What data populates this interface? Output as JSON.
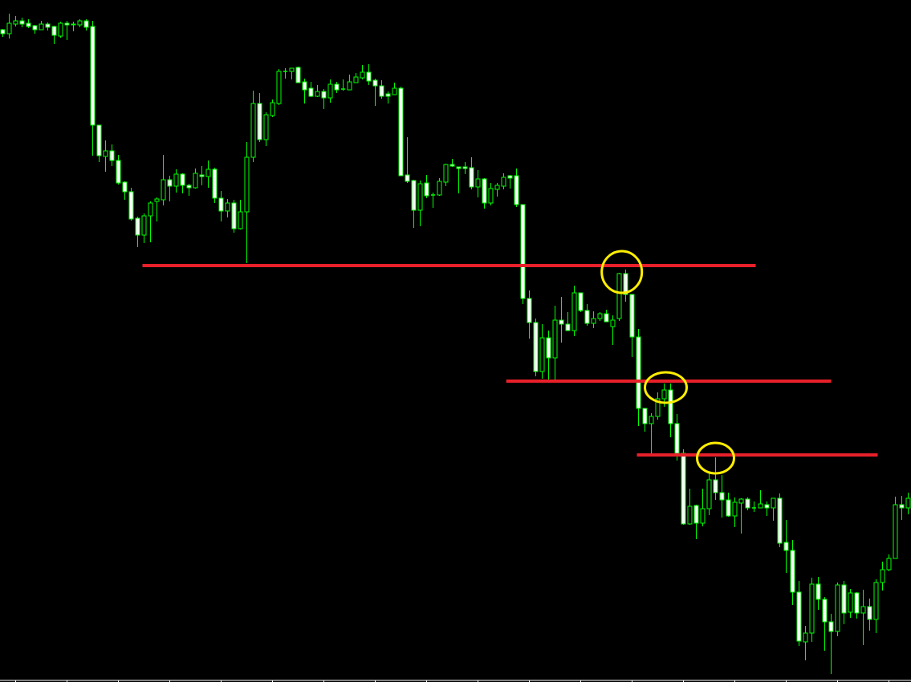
{
  "chart_data": {
    "type": "candlestick",
    "title": "",
    "xlabel": "",
    "ylabel": "",
    "ylim": [
      0,
      850
    ],
    "grid": false,
    "legend": "none",
    "colors": {
      "background": "#000000",
      "wick_and_outline": "#00ff00",
      "bearish_body": "#ffffff",
      "bullish_body": "#000000",
      "level_line": "#e8202a",
      "highlight_circle": "#ffee00",
      "axis": "#ffffff"
    },
    "candles_ohlc": [
      [
        813,
        814,
        804,
        808
      ],
      [
        808,
        833,
        802,
        821
      ],
      [
        820,
        830,
        817,
        824
      ],
      [
        824,
        828,
        816,
        820
      ],
      [
        821,
        826,
        815,
        817
      ],
      [
        818,
        819,
        808,
        813
      ],
      [
        813,
        824,
        813,
        820
      ],
      [
        820,
        822,
        812,
        816
      ],
      [
        817,
        818,
        795,
        806
      ],
      [
        805,
        823,
        803,
        821
      ],
      [
        821,
        824,
        800,
        819
      ],
      [
        819,
        823,
        811,
        820
      ],
      [
        819,
        826,
        816,
        824
      ],
      [
        824,
        826,
        812,
        816
      ],
      [
        817,
        824,
        656,
        694
      ],
      [
        694,
        694,
        648,
        656
      ],
      [
        655,
        675,
        636,
        662
      ],
      [
        662,
        670,
        643,
        650
      ],
      [
        650,
        657,
        620,
        622
      ],
      [
        623,
        624,
        601,
        611
      ],
      [
        611,
        616,
        575,
        577
      ],
      [
        578,
        580,
        542,
        557
      ],
      [
        557,
        584,
        547,
        581
      ],
      [
        581,
        599,
        548,
        597
      ],
      [
        599,
        604,
        574,
        602
      ],
      [
        601,
        657,
        594,
        626
      ],
      [
        626,
        631,
        599,
        618
      ],
      [
        618,
        639,
        610,
        633
      ],
      [
        633,
        634,
        609,
        619
      ],
      [
        619,
        621,
        606,
        616
      ],
      [
        616,
        640,
        615,
        634
      ],
      [
        632,
        643,
        619,
        630
      ],
      [
        630,
        650,
        616,
        639
      ],
      [
        639,
        641,
        597,
        603
      ],
      [
        603,
        612,
        574,
        587
      ],
      [
        587,
        602,
        579,
        597
      ],
      [
        597,
        601,
        560,
        565
      ],
      [
        565,
        601,
        564,
        586
      ],
      [
        586,
        673,
        522,
        654
      ],
      [
        654,
        737,
        648,
        721
      ],
      [
        721,
        734,
        673,
        676
      ],
      [
        676,
        710,
        668,
        707
      ],
      [
        706,
        726,
        704,
        722
      ],
      [
        721,
        764,
        719,
        761
      ],
      [
        761,
        765,
        752,
        761
      ],
      [
        761,
        765,
        751,
        765
      ],
      [
        766,
        767,
        747,
        747
      ],
      [
        748,
        752,
        721,
        738
      ],
      [
        740,
        748,
        729,
        730
      ],
      [
        730,
        744,
        729,
        736
      ],
      [
        736,
        739,
        714,
        728
      ],
      [
        728,
        751,
        722,
        745
      ],
      [
        745,
        748,
        734,
        738
      ],
      [
        739,
        751,
        737,
        739
      ],
      [
        738,
        757,
        738,
        748
      ],
      [
        747,
        759,
        747,
        754
      ],
      [
        753,
        769,
        751,
        760
      ],
      [
        760,
        770,
        744,
        749
      ],
      [
        750,
        752,
        718,
        743
      ],
      [
        743,
        750,
        727,
        730
      ],
      [
        733,
        736,
        721,
        730
      ],
      [
        732,
        747,
        732,
        740
      ],
      [
        740,
        742,
        631,
        631
      ],
      [
        632,
        679,
        622,
        624
      ],
      [
        625,
        626,
        566,
        588
      ],
      [
        588,
        625,
        568,
        621
      ],
      [
        622,
        632,
        603,
        606
      ],
      [
        607,
        610,
        591,
        607
      ],
      [
        607,
        628,
        606,
        624
      ],
      [
        623,
        646,
        618,
        645
      ],
      [
        645,
        652,
        642,
        643
      ],
      [
        642,
        642,
        609,
        640
      ],
      [
        642,
        648,
        633,
        640
      ],
      [
        641,
        654,
        614,
        617
      ],
      [
        617,
        638,
        604,
        627
      ],
      [
        627,
        628,
        590,
        597
      ],
      [
        597,
        622,
        594,
        615
      ],
      [
        614,
        622,
        605,
        619
      ],
      [
        618,
        634,
        614,
        629
      ],
      [
        631,
        632,
        615,
        628
      ],
      [
        631,
        640,
        592,
        595
      ],
      [
        595,
        595,
        471,
        478
      ],
      [
        478,
        488,
        428,
        448
      ],
      [
        448,
        453,
        381,
        387
      ],
      [
        387,
        446,
        378,
        429
      ],
      [
        429,
        438,
        377,
        404
      ],
      [
        404,
        469,
        377,
        451
      ],
      [
        451,
        480,
        423,
        446
      ],
      [
        446,
        461,
        438,
        438
      ],
      [
        438,
        494,
        431,
        485
      ],
      [
        485,
        485,
        461,
        463
      ],
      [
        463,
        471,
        444,
        447
      ],
      [
        447,
        462,
        441,
        453
      ],
      [
        453,
        461,
        450,
        459
      ],
      [
        459,
        464,
        449,
        449
      ],
      [
        443,
        457,
        420,
        451
      ],
      [
        453,
        510,
        450,
        509
      ],
      [
        509,
        514,
        474,
        483
      ],
      [
        483,
        483,
        405,
        430
      ],
      [
        430,
        440,
        319,
        341
      ],
      [
        341,
        341,
        312,
        322
      ],
      [
        322,
        335,
        285,
        331
      ],
      [
        331,
        361,
        327,
        353
      ],
      [
        353,
        372,
        343,
        364
      ],
      [
        364,
        372,
        305,
        322
      ],
      [
        322,
        334,
        276,
        285
      ],
      [
        285,
        290,
        196,
        197
      ],
      [
        197,
        241,
        196,
        219
      ],
      [
        220,
        221,
        178,
        198
      ],
      [
        198,
        241,
        194,
        216
      ],
      [
        216,
        260,
        208,
        252
      ],
      [
        252,
        280,
        227,
        236
      ],
      [
        236,
        258,
        205,
        227
      ],
      [
        227,
        236,
        206,
        207
      ],
      [
        207,
        230,
        193,
        224
      ],
      [
        223,
        229,
        185,
        228
      ],
      [
        228,
        230,
        214,
        217
      ],
      [
        217,
        225,
        212,
        217
      ],
      [
        217,
        239,
        217,
        222
      ],
      [
        221,
        225,
        207,
        217
      ],
      [
        217,
        229,
        201,
        229
      ],
      [
        229,
        235,
        168,
        173
      ],
      [
        174,
        202,
        136,
        164
      ],
      [
        164,
        177,
        96,
        112
      ],
      [
        112,
        126,
        45,
        51
      ],
      [
        50,
        70,
        27,
        61
      ],
      [
        61,
        130,
        50,
        122
      ],
      [
        122,
        131,
        90,
        103
      ],
      [
        103,
        106,
        39,
        75
      ],
      [
        75,
        85,
        10,
        63
      ],
      [
        63,
        124,
        57,
        121
      ],
      [
        121,
        126,
        72,
        86
      ],
      [
        87,
        116,
        80,
        111
      ],
      [
        111,
        112,
        79,
        86
      ],
      [
        86,
        115,
        46,
        94
      ],
      [
        94,
        104,
        64,
        78
      ],
      [
        78,
        128,
        61,
        124
      ],
      [
        124,
        150,
        114,
        140
      ],
      [
        140,
        159,
        138,
        154
      ],
      [
        154,
        231,
        154,
        221
      ],
      [
        221,
        232,
        202,
        217
      ],
      [
        217,
        236,
        209,
        229
      ]
    ],
    "level_lines": [
      {
        "price": 519,
        "from_candle": 21.75,
        "to_candle": 117.25
      },
      {
        "price": 375,
        "from_candle": 78.4,
        "to_candle": 129
      },
      {
        "price": 283,
        "from_candle": 98.75,
        "to_candle": 136.25
      }
    ],
    "highlight_circles": [
      {
        "candle": 96.4,
        "price": 511
      },
      {
        "candle": 103.25,
        "price": 367
      },
      {
        "candle": 111,
        "price": 279
      }
    ]
  }
}
